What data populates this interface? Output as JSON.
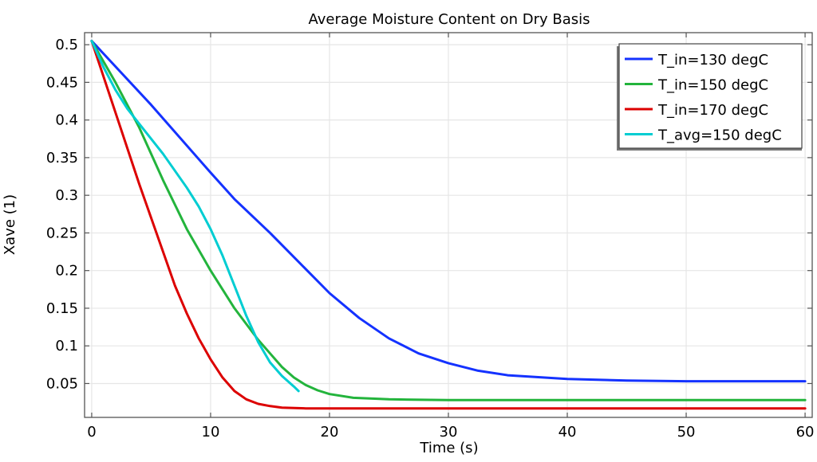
{
  "chart_data": {
    "type": "line",
    "title": "Average Moisture Content on Dry Basis",
    "xlabel": "Time (s)",
    "ylabel": "Xave (1)",
    "xlim": [
      -0.6,
      60.6
    ],
    "ylim": [
      0.005,
      0.516
    ],
    "xticks": [
      0,
      10,
      20,
      30,
      40,
      50,
      60
    ],
    "yticks": [
      0.05,
      0.1,
      0.15,
      0.2,
      0.25,
      0.3,
      0.35,
      0.4,
      0.45,
      0.5
    ],
    "ytick_labels": [
      "0.05",
      "0.1",
      "0.15",
      "0.2",
      "0.25",
      "0.3",
      "0.35",
      "0.4",
      "0.45",
      "0.5"
    ],
    "grid": true,
    "legend_position": "top-right",
    "series": [
      {
        "name": "T_in=130 degC",
        "color": "#1432ff",
        "x": [
          0,
          5,
          10,
          12,
          15,
          17.5,
          20,
          22.5,
          25,
          27.5,
          30,
          32.5,
          35,
          40,
          45,
          50,
          60
        ],
        "y": [
          0.505,
          0.42,
          0.33,
          0.295,
          0.25,
          0.21,
          0.17,
          0.137,
          0.11,
          0.09,
          0.077,
          0.067,
          0.061,
          0.056,
          0.054,
          0.053,
          0.053
        ]
      },
      {
        "name": "T_in=150 degC",
        "color": "#23b43c",
        "x": [
          0,
          2,
          4,
          6,
          8,
          10,
          12,
          14,
          15,
          16,
          17,
          18,
          19,
          20,
          22,
          25,
          30,
          60
        ],
        "y": [
          0.505,
          0.45,
          0.39,
          0.32,
          0.255,
          0.2,
          0.15,
          0.108,
          0.09,
          0.072,
          0.058,
          0.048,
          0.041,
          0.036,
          0.031,
          0.029,
          0.028,
          0.028
        ]
      },
      {
        "name": "T_in=170 degC",
        "color": "#dc0000",
        "x": [
          0,
          2,
          4,
          6,
          7,
          8,
          9,
          10,
          11,
          12,
          13,
          14,
          15,
          16,
          18,
          60
        ],
        "y": [
          0.505,
          0.41,
          0.315,
          0.225,
          0.18,
          0.143,
          0.11,
          0.082,
          0.058,
          0.04,
          0.029,
          0.023,
          0.02,
          0.018,
          0.017,
          0.017
        ]
      },
      {
        "name": "T_avg=150 degC",
        "color": "#00cdd2",
        "x": [
          0,
          1,
          2,
          3,
          4,
          6,
          8,
          9,
          10,
          11,
          12,
          13,
          14,
          15,
          16,
          17,
          17.4
        ],
        "y": [
          0.505,
          0.47,
          0.44,
          0.415,
          0.395,
          0.355,
          0.31,
          0.285,
          0.255,
          0.22,
          0.18,
          0.14,
          0.105,
          0.078,
          0.06,
          0.046,
          0.04
        ]
      }
    ]
  }
}
